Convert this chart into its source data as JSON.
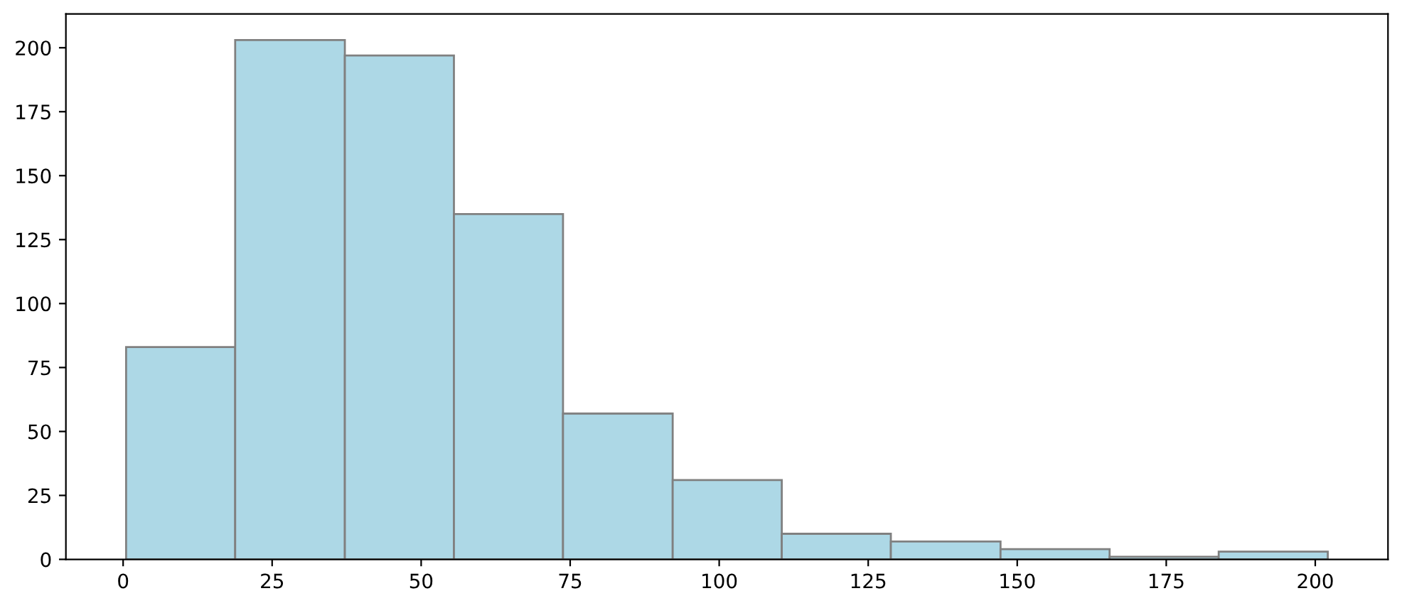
{
  "chart_data": {
    "type": "histogram",
    "bins": [
      0.5,
      18.8,
      37.2,
      55.5,
      73.8,
      92.2,
      110.5,
      128.8,
      147.2,
      165.5,
      183.8,
      202.1
    ],
    "values": [
      83,
      203,
      197,
      135,
      57,
      31,
      10,
      7,
      4,
      1,
      3
    ],
    "color": "#add8e6",
    "xlim": [
      -9.6,
      212.2
    ],
    "ylim": [
      0,
      213.2
    ],
    "xticks": [
      0,
      25,
      50,
      75,
      100,
      125,
      150,
      175,
      200
    ],
    "yticks": [
      0,
      25,
      50,
      75,
      100,
      125,
      150,
      175,
      200
    ],
    "grid": false,
    "legend": false
  }
}
